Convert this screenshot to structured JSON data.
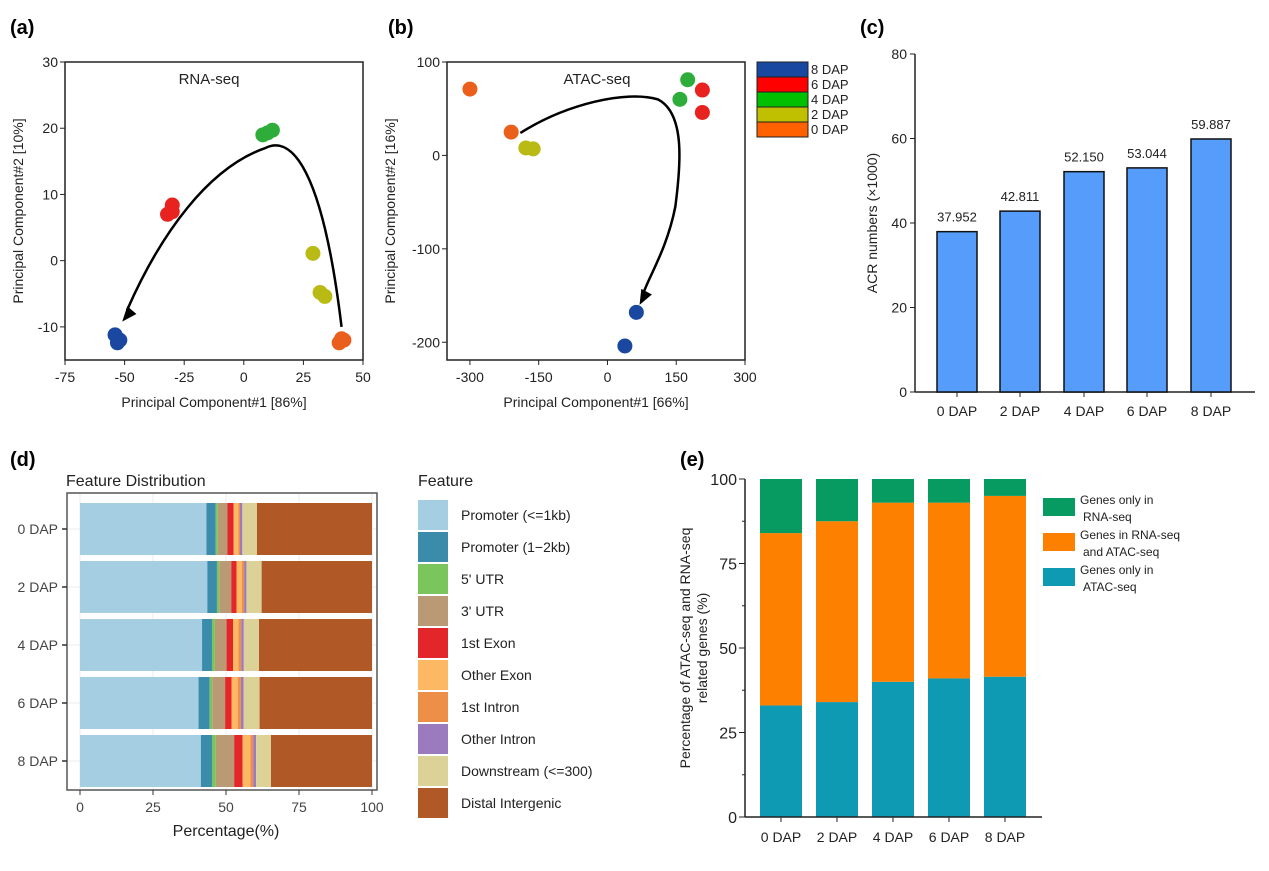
{
  "colors": {
    "8 DAP": "#1a47a0",
    "6 DAP": "#e8231f",
    "4 DAP": "#2fad3b",
    "2 DAP": "#b9ba14",
    "0 DAP": "#ea5f1c"
  },
  "chart_data": [
    {
      "panel": "(a)",
      "type": "scatter",
      "title": "RNA-seq",
      "xlabel": "Principal Component#1 [86%]",
      "ylabel": "Principal Component#2 [10%]",
      "xlim": [
        -75,
        50
      ],
      "ylim": [
        -15,
        30
      ],
      "xticks": [
        -75,
        -50,
        -25,
        0,
        25,
        50
      ],
      "yticks": [
        -10,
        0,
        10,
        20,
        30
      ],
      "series": [
        {
          "name": "8 DAP",
          "points": [
            [
              -54,
              -11.2
            ],
            [
              -52,
              -12
            ],
            [
              -53,
              -12.4
            ]
          ]
        },
        {
          "name": "6 DAP",
          "points": [
            [
              -30,
              8.4
            ],
            [
              -32,
              7
            ],
            [
              -30,
              7.4
            ]
          ]
        },
        {
          "name": "4 DAP",
          "points": [
            [
              8,
              19
            ],
            [
              10,
              19.3
            ],
            [
              12,
              19.7
            ]
          ]
        },
        {
          "name": "2 DAP",
          "points": [
            [
              29,
              1.1
            ],
            [
              32,
              -4.8
            ],
            [
              34,
              -5.4
            ]
          ]
        },
        {
          "name": "0 DAP",
          "points": [
            [
              40,
              -12.4
            ],
            [
              42,
              -12
            ],
            [
              41,
              -11.8
            ]
          ]
        }
      ],
      "arrow": "0 DAP to 8 DAP trajectory"
    },
    {
      "panel": "(b)",
      "type": "scatter",
      "title": "ATAC-seq",
      "xlabel": "Principal Component#1 [66%]",
      "ylabel": "Principal Component#2 [16%]",
      "xlim": [
        -350,
        300
      ],
      "ylim": [
        -219,
        100
      ],
      "xticks": [
        -300,
        -150,
        0,
        150,
        300
      ],
      "yticks": [
        -200,
        -100,
        0,
        100
      ],
      "legend": [
        "8 DAP",
        "6 DAP",
        "4 DAP",
        "2 DAP",
        "0 DAP"
      ],
      "series": [
        {
          "name": "8 DAP",
          "points": [
            [
              63,
              -168
            ],
            [
              38,
              -204
            ]
          ]
        },
        {
          "name": "6 DAP",
          "points": [
            [
              207,
              70
            ],
            [
              207,
              46
            ]
          ]
        },
        {
          "name": "4 DAP",
          "points": [
            [
              175,
              81
            ],
            [
              158,
              60
            ]
          ]
        },
        {
          "name": "2 DAP",
          "points": [
            [
              -178,
              8
            ],
            [
              -162,
              7
            ]
          ]
        },
        {
          "name": "0 DAP",
          "points": [
            [
              -300,
              71
            ],
            [
              -210,
              25
            ]
          ]
        }
      ]
    },
    {
      "panel": "(c)",
      "type": "bar",
      "ylabel": "ACR numbers (×1000)",
      "ylim": [
        0,
        80
      ],
      "yticks": [
        0,
        20,
        40,
        60,
        80
      ],
      "categories": [
        "0 DAP",
        "2 DAP",
        "4 DAP",
        "6 DAP",
        "8 DAP"
      ],
      "values": [
        37.952,
        42.811,
        52.15,
        53.044,
        59.887
      ],
      "labels": [
        "37.952",
        "42.811",
        "52.150",
        "53.044",
        "59.887"
      ],
      "color": "#559cfb"
    },
    {
      "panel": "(d)",
      "type": "bar",
      "orientation": "horizontal-stacked",
      "title": "Feature Distribution",
      "xlabel": "Percentage(%)",
      "xlim": [
        0,
        100
      ],
      "xticks": [
        0,
        25,
        50,
        75,
        100
      ],
      "legend_title": "Feature",
      "categories": [
        "0 DAP",
        "2 DAP",
        "4 DAP",
        "6 DAP",
        "8 DAP"
      ],
      "series": [
        {
          "name": "Promoter (<=1kb)",
          "color": "#a6cee3",
          "values": [
            43.3,
            43.6,
            41.8,
            40.6,
            41.4
          ]
        },
        {
          "name": "Promoter (1−2kb)",
          "color": "#3b8bab",
          "values": [
            3.2,
            3.3,
            3.4,
            3.8,
            3.8
          ]
        },
        {
          "name": "5' UTR",
          "color": "#7ac65d",
          "values": [
            0.7,
            0.8,
            1.0,
            0.9,
            1.3
          ]
        },
        {
          "name": "3' UTR",
          "color": "#b99a74",
          "values": [
            3.3,
            4.1,
            4.0,
            4.4,
            6.3
          ]
        },
        {
          "name": "1st Exon",
          "color": "#e3262a",
          "values": [
            2.1,
            1.8,
            2.2,
            2.2,
            2.9
          ]
        },
        {
          "name": "Other Exon",
          "color": "#fdb863",
          "values": [
            1.6,
            1.8,
            1.9,
            2.1,
            2.6
          ]
        },
        {
          "name": "1st Intron",
          "color": "#ee8f47",
          "values": [
            0.6,
            0.8,
            0.9,
            1.1,
            1.0
          ]
        },
        {
          "name": "Other Intron",
          "color": "#9b7bbd",
          "values": [
            0.8,
            0.8,
            0.9,
            0.9,
            1.0
          ]
        },
        {
          "name": "Downstream (<=300)",
          "color": "#dcd298",
          "values": [
            5.0,
            5.2,
            5.2,
            5.5,
            5.1
          ]
        },
        {
          "name": "Distal Intergenic",
          "color": "#b05927",
          "values": [
            39.4,
            37.8,
            38.7,
            38.5,
            34.6
          ]
        }
      ]
    },
    {
      "panel": "(e)",
      "type": "bar",
      "orientation": "vertical-stacked",
      "ylabel": [
        "Percentage of ATAC-seq and RNA-seq",
        "related genes (%)"
      ],
      "ylim": [
        0,
        100
      ],
      "yticks": [
        0,
        25,
        50,
        75,
        100
      ],
      "categories": [
        "0 DAP",
        "2 DAP",
        "4 DAP",
        "6 DAP",
        "8 DAP"
      ],
      "series": [
        {
          "name": "Genes only in ATAC-seq",
          "legend": [
            "Genes only in",
            "ATAC-seq"
          ],
          "color": "#0e9ab3",
          "values": [
            33,
            34,
            40,
            41,
            41.5
          ]
        },
        {
          "name": "Genes in RNA-seq and ATAC-seq",
          "legend": [
            "Genes in RNA-seq",
            "and ATAC-seq"
          ],
          "color": "#fe8001",
          "values": [
            51,
            53.5,
            53,
            52,
            53.5
          ]
        },
        {
          "name": "Genes only in RNA-seq",
          "legend": [
            "Genes only in",
            "RNA-seq"
          ],
          "color": "#079a61",
          "values": [
            16,
            12.5,
            7,
            7,
            5
          ]
        }
      ]
    }
  ]
}
